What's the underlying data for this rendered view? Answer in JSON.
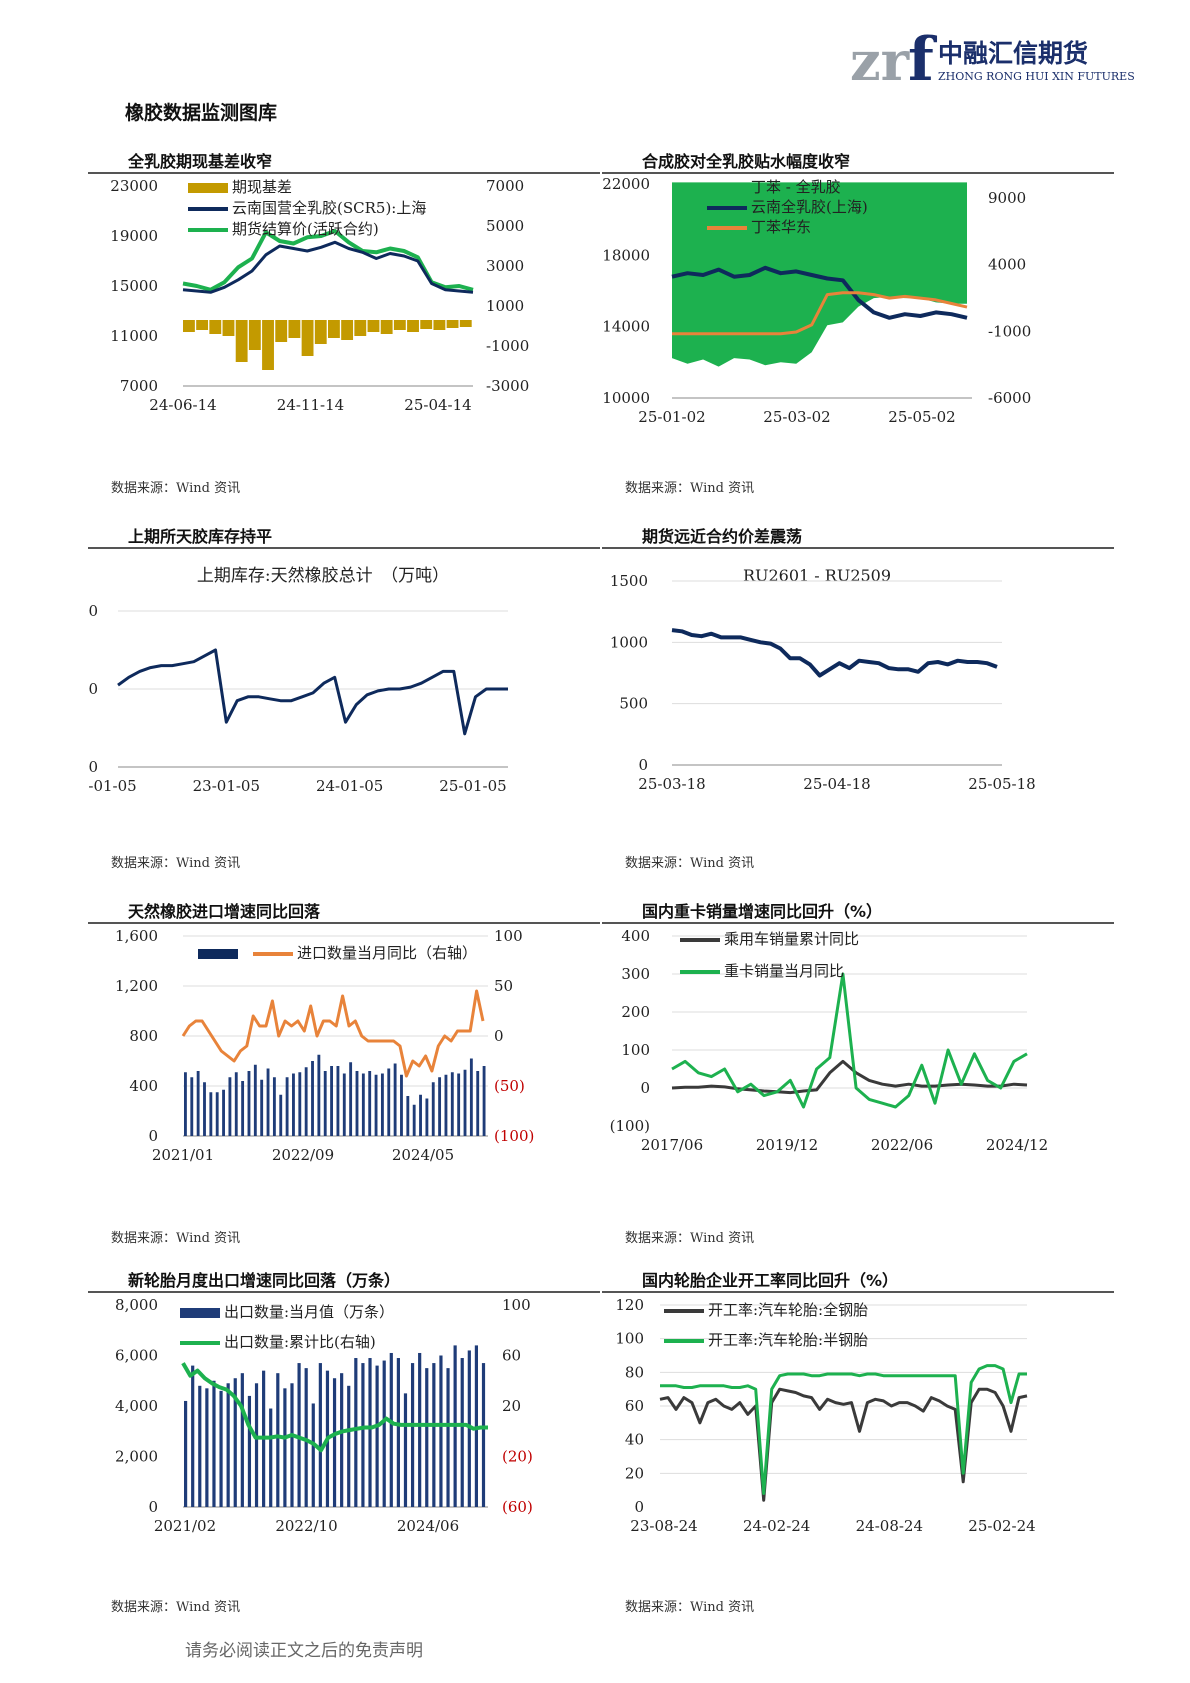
{
  "header": {
    "logo_mark": "zrf",
    "logo_cn": "中融汇信期货",
    "logo_en": "ZHONG RONG HUI XIN FUTURES",
    "page_title": "橡胶数据监测图库"
  },
  "colors": {
    "navy": "#0e2a5c",
    "green": "#1db14f",
    "gold": "#c39a00",
    "orange": "#e8833a",
    "red": "#c00000",
    "gray": "#3a3a3a",
    "barnavy": "#1f3c78"
  },
  "source_text": "数据来源：Wind 资讯",
  "disclaimer": "请务必阅读正文之后的免责声明",
  "charts": [
    {
      "id": "c1",
      "title": "全乳胶期现基差收窄",
      "chart_data": {
        "type": "line+bar",
        "x_ticks": [
          "24-06-14",
          "24-11-14",
          "25-04-14"
        ],
        "y_left": [
          23000,
          19000,
          15000,
          11000,
          7000
        ],
        "y_right": [
          7000,
          5000,
          3000,
          1000,
          -1000,
          -3000
        ],
        "ylim_left": [
          7000,
          23000
        ],
        "ylim_right": [
          -3000,
          7000
        ],
        "legend": [
          "期现基差",
          "云南国营全乳胶(SCR5):上海",
          "期货结算价(活跃合约)"
        ],
        "series": [
          {
            "name": "云南国营全乳胶(SCR5):上海",
            "axis": "left",
            "values": [
              14700,
              14600,
              14500,
              14900,
              15500,
              16200,
              17500,
              18200,
              18000,
              17800,
              18100,
              18500,
              18000,
              17700,
              17200,
              17600,
              17400,
              17000,
              15200,
              14700,
              14600,
              14500
            ]
          },
          {
            "name": "期货结算价(活跃合约)",
            "axis": "left",
            "values": [
              15200,
              15000,
              14700,
              15300,
              16500,
              17200,
              19300,
              18600,
              18400,
              18900,
              19000,
              19400,
              18500,
              17800,
              17700,
              18000,
              17800,
              17300,
              15300,
              14900,
              15000,
              14700
            ]
          },
          {
            "name": "期现基差",
            "axis": "right",
            "values": [
              -300,
              -200,
              -400,
              -500,
              -1800,
              -1200,
              -2200,
              -800,
              -600,
              -1500,
              -900,
              -600,
              -700,
              -500,
              -300,
              -400,
              -200,
              -300,
              -150,
              -200,
              -100,
              -50
            ]
          }
        ]
      }
    },
    {
      "id": "c2",
      "title": "合成胶对全乳胶贴水幅度收窄",
      "chart_data": {
        "type": "line+area",
        "x_ticks": [
          "25-01-02",
          "25-03-02",
          "25-05-02"
        ],
        "y_left": [
          22000,
          18000,
          14000,
          10000
        ],
        "y_right": [
          9000,
          4000,
          -1000,
          -6000
        ],
        "ylim_left": [
          10000,
          22000
        ],
        "ylim_right": [
          -6000,
          9000
        ],
        "legend": [
          "丁苯 - 全乳胶",
          "云南全乳胶(上海)",
          "丁苯华东"
        ],
        "series": [
          {
            "name": "云南全乳胶(上海)",
            "axis": "left",
            "values": [
              16800,
              17000,
              16900,
              17200,
              16800,
              16900,
              17300,
              17000,
              17100,
              16900,
              16700,
              16600,
              15500,
              14800,
              14500,
              14700,
              14600,
              14800,
              14700,
              14500
            ]
          },
          {
            "name": "丁苯华东",
            "axis": "left",
            "values": [
              13600,
              13600,
              13600,
              13600,
              13600,
              13600,
              13600,
              13600,
              13700,
              14100,
              15800,
              15900,
              15900,
              15800,
              15600,
              15700,
              15600,
              15500,
              15300,
              15100
            ]
          },
          {
            "name": "丁苯 - 全乳胶",
            "axis": "right",
            "values": [
              -3200,
              -3600,
              -3300,
              -3800,
              -3200,
              -3300,
              -3700,
              -3500,
              -3600,
              -2800,
              -900,
              -700,
              400,
              1000,
              1100,
              1000,
              1000,
              700,
              600,
              600
            ]
          }
        ]
      }
    },
    {
      "id": "c3",
      "title": "上期所天胶库存持平",
      "chart_data": {
        "type": "line",
        "title": "上期库存:天然橡胶总计　（万吨）",
        "x_ticks": [
          "22-01-05",
          "23-01-05",
          "24-01-05",
          "25-01-05"
        ],
        "y_ticks": [
          40,
          20,
          0
        ],
        "ylim": [
          0,
          40
        ],
        "series": [
          {
            "name": "上期库存:天然橡胶总计",
            "values": [
              21,
              23,
              24.5,
              25.5,
              26,
              26,
              26.5,
              27,
              28.5,
              30,
              11.5,
              17,
              18,
              18,
              17.5,
              17,
              17,
              18,
              19,
              21.5,
              23,
              11.5,
              16,
              18.5,
              19.5,
              20,
              20,
              20.5,
              21.5,
              23,
              24.5,
              24.5,
              8.5,
              18,
              20,
              20,
              20
            ]
          }
        ]
      }
    },
    {
      "id": "c4",
      "title": "期货远近合约价差震荡",
      "chart_data": {
        "type": "line",
        "title": "RU2601 - RU2509",
        "x_ticks": [
          "25-03-18",
          "25-04-18",
          "25-05-18"
        ],
        "y_ticks": [
          1500,
          1000,
          500,
          0
        ],
        "ylim": [
          0,
          1500
        ],
        "series": [
          {
            "name": "RU2601 - RU2509",
            "values": [
              1100,
              1090,
              1060,
              1050,
              1070,
              1040,
              1040,
              1040,
              1020,
              1000,
              990,
              950,
              870,
              870,
              820,
              730,
              780,
              830,
              790,
              850,
              840,
              830,
              790,
              780,
              780,
              760,
              830,
              840,
              820,
              850,
              840,
              840,
              830,
              800
            ]
          }
        ]
      }
    },
    {
      "id": "c5",
      "title": "天然橡胶进口增速同比回落",
      "chart_data": {
        "type": "bar+line",
        "x_ticks": [
          "2021/01",
          "2022/09",
          "2024/05"
        ],
        "y_left": [
          "1,600",
          "1,200",
          "800",
          "400",
          "0"
        ],
        "y_right": [
          "100",
          "50",
          "0",
          "(50)",
          "(100)"
        ],
        "ylim_left": [
          0,
          1600
        ],
        "ylim_right": [
          -100,
          100
        ],
        "legend": [
          "",
          "进口数量当月同比（右轴）"
        ],
        "bars": [
          510,
          470,
          520,
          430,
          350,
          350,
          370,
          470,
          510,
          440,
          520,
          570,
          450,
          540,
          470,
          330,
          470,
          500,
          510,
          550,
          600,
          650,
          520,
          560,
          560,
          500,
          590,
          520,
          500,
          520,
          490,
          500,
          540,
          580,
          490,
          320,
          250,
          330,
          300,
          430,
          470,
          490,
          510,
          500,
          530,
          620,
          520,
          560
        ],
        "line": [
          0,
          10,
          15,
          15,
          5,
          -5,
          -15,
          -20,
          -25,
          -15,
          -10,
          20,
          10,
          10,
          35,
          0,
          15,
          10,
          15,
          5,
          30,
          0,
          15,
          15,
          10,
          40,
          10,
          15,
          0,
          -5,
          -5,
          -5,
          -5,
          -5,
          -10,
          -40,
          -25,
          -30,
          -20,
          -35,
          -10,
          0,
          -5,
          5,
          5,
          5,
          45,
          15
        ]
      }
    },
    {
      "id": "c6",
      "title": "国内重卡销量增速同比回升（%）",
      "chart_data": {
        "type": "line",
        "x_ticks": [
          "2017/06",
          "2019/12",
          "2022/06",
          "2024/12"
        ],
        "y_ticks": [
          "400",
          "300",
          "200",
          "100",
          "0",
          "(100)"
        ],
        "ylim": [
          -100,
          400
        ],
        "legend": [
          "乘用车销量累计同比",
          "重卡销量当月同比"
        ],
        "series": [
          {
            "name": "乘用车销量累计同比",
            "values": [
              0,
              2,
              2,
              5,
              3,
              -2,
              -5,
              -8,
              -10,
              -12,
              -8,
              -5,
              40,
              70,
              40,
              20,
              10,
              5,
              10,
              5,
              5,
              8,
              10,
              8,
              5,
              5,
              10,
              8
            ]
          },
          {
            "name": "重卡销量当月同比",
            "values": [
              50,
              70,
              40,
              30,
              50,
              -10,
              10,
              -20,
              -10,
              20,
              -50,
              50,
              80,
              300,
              0,
              -30,
              -40,
              -50,
              -20,
              60,
              -40,
              100,
              10,
              90,
              20,
              0,
              70,
              90
            ]
          }
        ]
      }
    },
    {
      "id": "c7",
      "title": "新轮胎月度出口增速同比回落（万条）",
      "chart_data": {
        "type": "bar+line",
        "x_ticks": [
          "2021/02",
          "2022/10",
          "2024/06"
        ],
        "y_left": [
          "8,000",
          "6,000",
          "4,000",
          "2,000",
          "0"
        ],
        "y_right": [
          "100",
          "60",
          "20",
          "(20)",
          "(60)"
        ],
        "ylim_left": [
          0,
          8000
        ],
        "ylim_right": [
          -60,
          100
        ],
        "legend": [
          "出口数量:当月值（万条）",
          "出口数量:累计比(右轴)"
        ],
        "bars": [
          4200,
          5600,
          4800,
          4700,
          5000,
          4600,
          4900,
          5100,
          5300,
          4400,
          4900,
          5400,
          3900,
          5300,
          4700,
          4900,
          5700,
          5500,
          4100,
          5700,
          5400,
          5100,
          5300,
          4800,
          5900,
          5700,
          5900,
          5600,
          5800,
          6100,
          5900,
          4500,
          5700,
          6100,
          5500,
          5700,
          6000,
          5500,
          6400,
          5900,
          6200,
          6400,
          5700
        ],
        "line": [
          54,
          44,
          48,
          42,
          38,
          35,
          33,
          28,
          20,
          5,
          -5,
          -5,
          -5,
          -4,
          -5,
          -3,
          -5,
          -7,
          -10,
          -15,
          -5,
          -2,
          0,
          1,
          2,
          3,
          3,
          5,
          10,
          6,
          5,
          5,
          5,
          5,
          5,
          5,
          5,
          5,
          5,
          5,
          2,
          3,
          3
        ]
      }
    },
    {
      "id": "c8",
      "title": "国内轮胎企业开工率同比回升（%）",
      "chart_data": {
        "type": "line",
        "x_ticks": [
          "23-08-24",
          "24-02-24",
          "24-08-24",
          "25-02-24"
        ],
        "y_ticks": [
          120,
          100,
          80,
          60,
          40,
          20,
          0
        ],
        "ylim": [
          0,
          120
        ],
        "legend": [
          "开工率:汽车轮胎:全钢胎",
          "开工率:汽车轮胎:半钢胎"
        ],
        "series": [
          {
            "name": "开工率:汽车轮胎:全钢胎",
            "values": [
              64,
              65,
              58,
              65,
              62,
              50,
              62,
              64,
              60,
              58,
              62,
              55,
              60,
              4,
              62,
              70,
              69,
              68,
              66,
              65,
              58,
              64,
              62,
              61,
              62,
              45,
              62,
              64,
              63,
              60,
              62,
              62,
              60,
              57,
              65,
              63,
              60,
              58,
              15,
              62,
              70,
              70,
              68,
              60,
              45,
              65,
              66
            ]
          },
          {
            "name": "开工率:汽车轮胎:半钢胎",
            "values": [
              72,
              72,
              72,
              71,
              71,
              72,
              72,
              72,
              72,
              71,
              71,
              72,
              70,
              8,
              70,
              78,
              79,
              79,
              79,
              78,
              78,
              79,
              79,
              79,
              79,
              78,
              79,
              79,
              78,
              78,
              78,
              78,
              78,
              78,
              78,
              78,
              78,
              78,
              20,
              74,
              82,
              84,
              84,
              82,
              62,
              79,
              79
            ]
          }
        ]
      }
    }
  ]
}
